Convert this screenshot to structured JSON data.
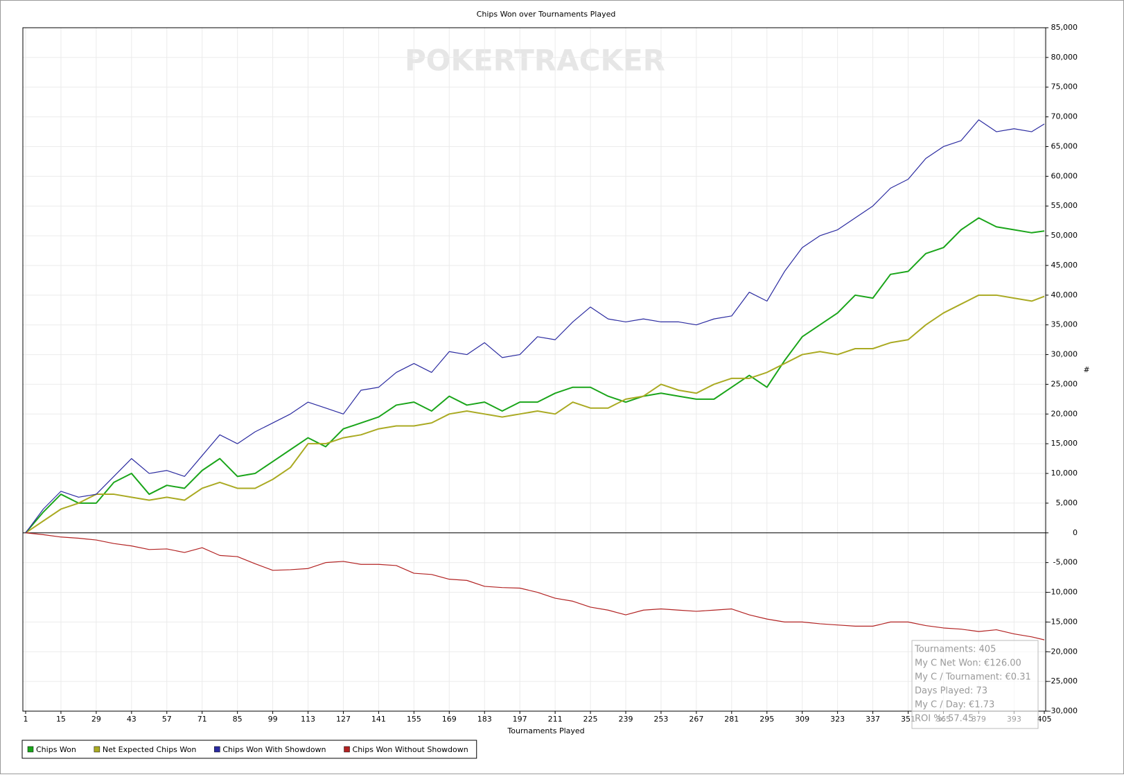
{
  "chart_data": {
    "type": "line",
    "title": "Chips Won over Tournaments Played",
    "watermark": "POKERTRACKER",
    "x_label": "Tournaments Played",
    "y_label": "#",
    "xlim": [
      1,
      405
    ],
    "xticks": [
      1,
      15,
      29,
      43,
      57,
      71,
      85,
      99,
      113,
      127,
      141,
      155,
      169,
      183,
      197,
      211,
      225,
      239,
      253,
      267,
      281,
      295,
      309,
      323,
      337,
      351,
      365,
      379,
      393,
      405
    ],
    "ylim": [
      -30000,
      85000
    ],
    "yticks": [
      {
        "value": -30000,
        "label": "-30,000"
      },
      {
        "value": -25000,
        "label": "-25,000"
      },
      {
        "value": -20000,
        "label": "-20,000"
      },
      {
        "value": -15000,
        "label": "-15,000"
      },
      {
        "value": -10000,
        "label": "-10,000"
      },
      {
        "value": -5000,
        "label": "-5,000"
      },
      0,
      {
        "value": 5000,
        "label": "5,000"
      },
      {
        "value": 10000,
        "label": "10,000"
      },
      {
        "value": 15000,
        "label": "15,000"
      },
      {
        "value": 20000,
        "label": "20,000"
      },
      {
        "value": 25000,
        "label": "25,000"
      },
      {
        "value": 30000,
        "label": "30,000"
      },
      {
        "value": 35000,
        "label": "35,000"
      },
      {
        "value": 40000,
        "label": "40,000"
      },
      {
        "value": 45000,
        "label": "45,000"
      },
      {
        "value": 50000,
        "label": "50,000"
      },
      {
        "value": 55000,
        "label": "55,000"
      },
      {
        "value": 60000,
        "label": "60,000"
      },
      {
        "value": 65000,
        "label": "65,000"
      },
      {
        "value": 70000,
        "label": "70,000"
      },
      {
        "value": 75000,
        "label": "75,000"
      },
      {
        "value": 80000,
        "label": "80,000"
      },
      {
        "value": 85000,
        "label": "85,000"
      }
    ],
    "grid": true,
    "x": [
      1,
      8,
      15,
      22,
      29,
      36,
      43,
      50,
      57,
      64,
      71,
      78,
      85,
      92,
      99,
      106,
      113,
      120,
      127,
      134,
      141,
      148,
      155,
      162,
      169,
      176,
      183,
      190,
      197,
      204,
      211,
      218,
      225,
      232,
      239,
      246,
      253,
      260,
      267,
      274,
      281,
      288,
      295,
      302,
      309,
      316,
      323,
      330,
      337,
      344,
      351,
      358,
      365,
      372,
      379,
      386,
      393,
      400,
      405
    ],
    "series": [
      {
        "name": "Chips Won",
        "color": "#1aa51a",
        "width": 2,
        "values": [
          0,
          3500,
          6500,
          5000,
          5000,
          8500,
          10000,
          6500,
          8000,
          7500,
          10500,
          12500,
          9500,
          10000,
          12000,
          14000,
          16000,
          14500,
          17500,
          18500,
          19500,
          21500,
          22000,
          20500,
          23000,
          21500,
          22000,
          20500,
          22000,
          22000,
          23500,
          24500,
          24500,
          23000,
          22000,
          23000,
          23500,
          23000,
          22500,
          22500,
          24500,
          26500,
          24500,
          29000,
          33000,
          35000,
          37000,
          40000,
          39500,
          43500,
          44000,
          47000,
          48000,
          51000,
          53000,
          51500,
          51000,
          50500,
          50800
        ]
      },
      {
        "name": "Net Expected Chips Won",
        "color": "#aaaa22",
        "width": 2,
        "values": [
          0,
          2000,
          4000,
          5000,
          6500,
          6500,
          6000,
          5500,
          6000,
          5500,
          7500,
          8500,
          7500,
          7500,
          9000,
          11000,
          15000,
          15000,
          16000,
          16500,
          17500,
          18000,
          18000,
          18500,
          20000,
          20500,
          20000,
          19500,
          20000,
          20500,
          20000,
          22000,
          21000,
          21000,
          22500,
          23000,
          25000,
          24000,
          23500,
          25000,
          26000,
          26000,
          27000,
          28500,
          30000,
          30500,
          30000,
          31000,
          31000,
          32000,
          32500,
          35000,
          37000,
          38500,
          40000,
          40000,
          39500,
          39000,
          39800
        ]
      },
      {
        "name": "Chips Won With Showdown",
        "color": "#2a2aa0",
        "width": 1.2,
        "values": [
          0,
          4000,
          7000,
          6000,
          6500,
          9500,
          12500,
          10000,
          10500,
          9500,
          13000,
          16500,
          15000,
          17000,
          18500,
          20000,
          22000,
          21000,
          20000,
          24000,
          24500,
          27000,
          28500,
          27000,
          30500,
          30000,
          32000,
          29500,
          30000,
          33000,
          32500,
          35500,
          38000,
          36000,
          35500,
          36000,
          35500,
          35500,
          35000,
          36000,
          36500,
          40500,
          39000,
          44000,
          48000,
          50000,
          51000,
          53000,
          55000,
          58000,
          59500,
          63000,
          65000,
          66000,
          69500,
          67500,
          68000,
          67500,
          68800
        ]
      },
      {
        "name": "Chips Won Without Showdown",
        "color": "#b22222",
        "width": 1.2,
        "values": [
          0,
          -300,
          -700,
          -900,
          -1200,
          -1800,
          -2200,
          -2800,
          -2700,
          -3300,
          -2500,
          -3800,
          -4000,
          -5200,
          -6300,
          -6200,
          -6000,
          -5000,
          -4800,
          -5300,
          -5300,
          -5500,
          -6800,
          -7000,
          -7800,
          -8000,
          -9000,
          -9200,
          -9300,
          -10000,
          -11000,
          -11500,
          -12500,
          -13000,
          -13800,
          -13000,
          -12800,
          -13000,
          -13200,
          -13000,
          -12800,
          -13800,
          -14500,
          -15000,
          -15000,
          -15300,
          -15500,
          -15700,
          -15700,
          -15000,
          -15000,
          -15600,
          -16000,
          -16200,
          -16600,
          -16300,
          -17000,
          -17500,
          -18000
        ]
      }
    ],
    "info_box": [
      "Tournaments: 405",
      "My C Net Won: €126.00",
      "My C / Tournament: €0.31",
      "Days Played: 73",
      "My C / Day: €1.73",
      "ROI %: 57.45"
    ]
  }
}
